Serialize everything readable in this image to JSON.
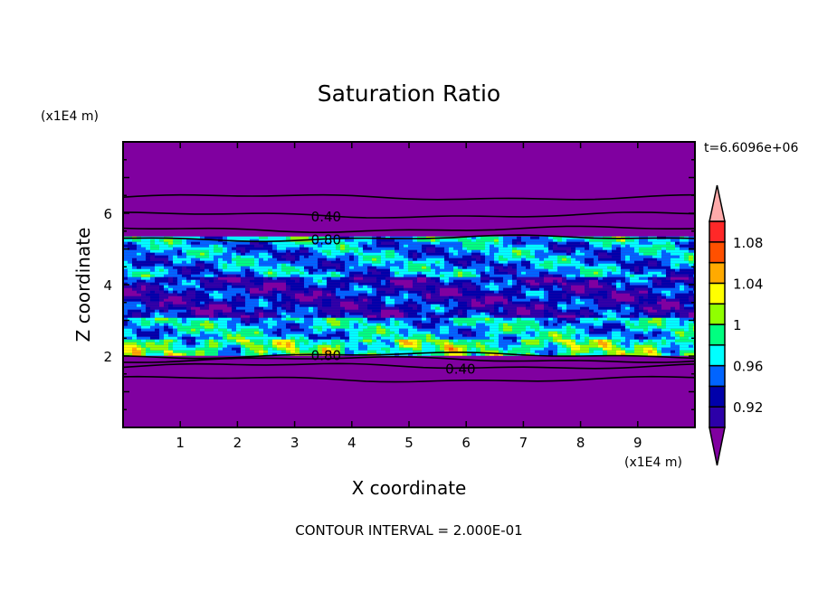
{
  "chart_data": {
    "type": "heatmap",
    "title": "Saturation Ratio",
    "xlabel": "X coordinate",
    "ylabel": "Z coordinate",
    "x_unit": "(x1E4 m)",
    "y_unit": "(x1E4 m)",
    "xlim": [
      0,
      10
    ],
    "ylim": [
      0,
      8
    ],
    "x_ticks": [
      1,
      2,
      3,
      4,
      5,
      6,
      7,
      8,
      9
    ],
    "y_ticks": [
      2,
      4,
      6
    ],
    "time_label": "t=6.6096e+06",
    "footer": "CONTOUR INTERVAL = 2.000E-01",
    "shade_levels": [
      0.9,
      0.92,
      0.94,
      0.96,
      0.98,
      1.0,
      1.02,
      1.04,
      1.06,
      1.08,
      1.1
    ],
    "shade_colors": [
      "#8000a0",
      "#2c00a8",
      "#0000aa",
      "#0064ff",
      "#00ffff",
      "#00ff80",
      "#90ff00",
      "#ffff00",
      "#ffaa00",
      "#ff5000",
      "#ff2828",
      "#ffaaaa"
    ],
    "colorbar_labels": [
      "1.08",
      "1.04",
      "1",
      "0.96",
      "0.92"
    ],
    "colorbar_label_values": [
      1.08,
      1.04,
      1.0,
      0.96,
      0.92
    ],
    "contour_lines": [
      {
        "level": 0.2,
        "z": 6.45,
        "label": ""
      },
      {
        "level": 0.4,
        "z": 5.95,
        "label": "0.40"
      },
      {
        "level": 0.6,
        "z": 5.55,
        "label": ""
      },
      {
        "level": 0.8,
        "z": 5.3,
        "label": "0.80"
      },
      {
        "level": 0.8,
        "z": 2.02,
        "label": "0.80"
      },
      {
        "level": 0.6,
        "z": 1.9,
        "label": ""
      },
      {
        "level": 0.4,
        "z": 1.72,
        "label": "0.40"
      },
      {
        "level": 0.2,
        "z": 1.35,
        "label": ""
      }
    ]
  }
}
